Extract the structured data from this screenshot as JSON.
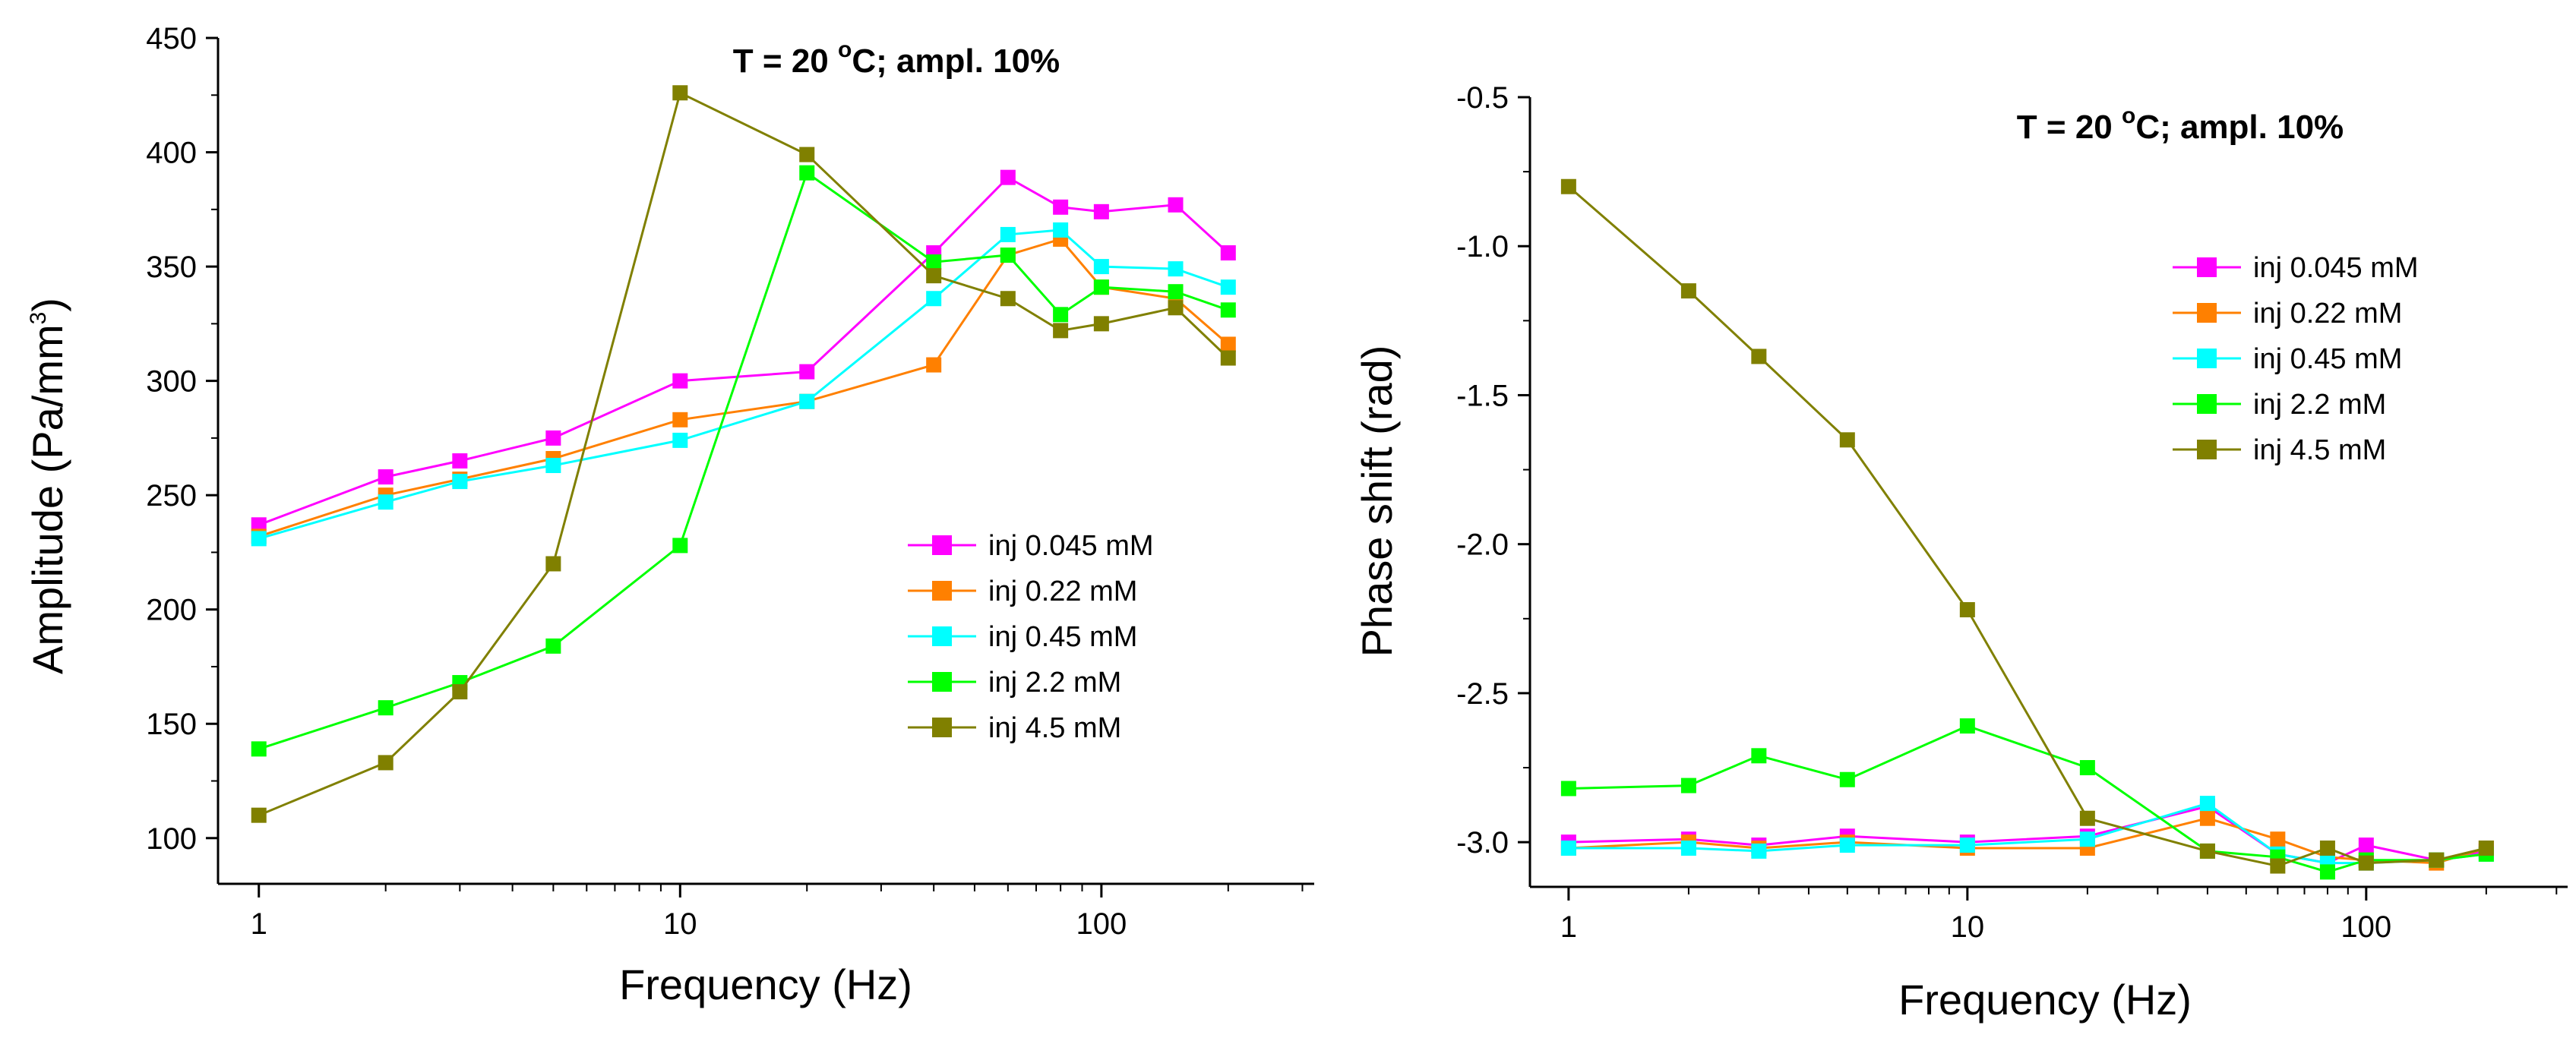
{
  "chart_data": [
    {
      "type": "line",
      "title": "T = 20 °C;  ampl. 10%",
      "title_parts": {
        "prefix": "T = 20 ",
        "degree": "o",
        "suffix": "C;  ampl. 10%"
      },
      "xlabel": "Frequency (Hz)",
      "ylabel": "Amplitude (Pa/mm³)",
      "ylabel_parts": {
        "base": "Amplitude (Pa/mm",
        "sup": "3",
        "close": ")"
      },
      "xscale": "log",
      "xlim": [
        0.8,
        320
      ],
      "ylim": [
        80,
        450
      ],
      "xticks": [
        1,
        10,
        100
      ],
      "xtick_labels": [
        "1",
        "10",
        "100"
      ],
      "yticks": [
        100,
        150,
        200,
        250,
        300,
        350,
        400,
        450
      ],
      "ytick_labels": [
        "100",
        "150",
        "200",
        "250",
        "300",
        "350",
        "400",
        "450"
      ],
      "legend_position": "lower-right",
      "series": [
        {
          "name": "inj 0.045 mM",
          "color": "#ff00ff",
          "x": [
            1,
            2,
            3,
            5,
            10,
            20,
            40,
            60,
            80,
            100,
            150,
            200
          ],
          "y": [
            237,
            258,
            265,
            275,
            300,
            304,
            356,
            389,
            376,
            374,
            377,
            356
          ]
        },
        {
          "name": "inj 0.22 mM",
          "color": "#ff8000",
          "x": [
            1,
            2,
            3,
            5,
            10,
            20,
            40,
            60,
            80,
            100,
            150,
            200
          ],
          "y": [
            232,
            250,
            257,
            266,
            283,
            291,
            307,
            355,
            362,
            341,
            336,
            316
          ]
        },
        {
          "name": "inj 0.45 mM",
          "color": "#00ffff",
          "x": [
            1,
            2,
            3,
            5,
            10,
            20,
            40,
            60,
            80,
            100,
            150,
            200
          ],
          "y": [
            231,
            247,
            256,
            263,
            274,
            291,
            336,
            364,
            366,
            350,
            349,
            341
          ]
        },
        {
          "name": "inj 2.2 mM",
          "color": "#00ff00",
          "x": [
            1,
            2,
            3,
            5,
            10,
            20,
            40,
            60,
            80,
            100,
            150,
            200
          ],
          "y": [
            139,
            157,
            168,
            184,
            228,
            391,
            352,
            355,
            329,
            341,
            339,
            331
          ]
        },
        {
          "name": "inj 4.5 mM",
          "color": "#808000",
          "x": [
            1,
            2,
            3,
            5,
            10,
            20,
            40,
            60,
            80,
            100,
            150,
            200
          ],
          "y": [
            110,
            133,
            164,
            220,
            426,
            399,
            346,
            336,
            322,
            325,
            332,
            310
          ]
        }
      ]
    },
    {
      "type": "line",
      "title": "T = 20 °C;  ampl. 10%",
      "title_parts": {
        "prefix": "T = 20 ",
        "degree": "o",
        "suffix": "C;  ampl. 10%"
      },
      "xlabel": "Frequency (Hz)",
      "ylabel": "Phase shift (rad)",
      "xscale": "log",
      "xlim": [
        0.8,
        320
      ],
      "ylim": [
        -3.15,
        -0.5
      ],
      "xticks": [
        1,
        10,
        100
      ],
      "xtick_labels": [
        "1",
        "10",
        "100"
      ],
      "yticks": [
        -0.5,
        -1.0,
        -1.5,
        -2.0,
        -2.5,
        -3.0
      ],
      "ytick_labels": [
        "-0.5",
        "-1.0",
        "-1.5",
        "-2.0",
        "-2.5",
        "-3.0"
      ],
      "legend_position": "top-right",
      "series": [
        {
          "name": "inj 0.045 mM",
          "color": "#ff00ff",
          "x": [
            1,
            2,
            3,
            5,
            10,
            20,
            40,
            60,
            80,
            100,
            150,
            200
          ],
          "y": [
            -3.0,
            -2.99,
            -3.01,
            -2.98,
            -3.0,
            -2.98,
            -2.88,
            -3.04,
            -3.07,
            -3.01,
            -3.06,
            -3.03
          ]
        },
        {
          "name": "inj 0.22 mM",
          "color": "#ff8000",
          "x": [
            1,
            2,
            3,
            5,
            10,
            20,
            40,
            60,
            80,
            100,
            150,
            200
          ],
          "y": [
            -3.02,
            -3.0,
            -3.02,
            -3.0,
            -3.02,
            -3.02,
            -2.92,
            -2.99,
            -3.05,
            -3.06,
            -3.07,
            -3.02
          ]
        },
        {
          "name": "inj 0.45 mM",
          "color": "#00ffff",
          "x": [
            1,
            2,
            3,
            5,
            10,
            20,
            40,
            60,
            80,
            100,
            150,
            200
          ],
          "y": [
            -3.02,
            -3.02,
            -3.03,
            -3.01,
            -3.01,
            -2.99,
            -2.87,
            -3.04,
            -3.07,
            -3.07,
            -3.06,
            -3.04
          ]
        },
        {
          "name": "inj 2.2 mM",
          "color": "#00ff00",
          "x": [
            1,
            2,
            3,
            5,
            10,
            20,
            40,
            60,
            80,
            100,
            150,
            200
          ],
          "y": [
            -2.82,
            -2.81,
            -2.71,
            -2.79,
            -2.61,
            -2.75,
            -3.03,
            -3.05,
            -3.1,
            -3.06,
            -3.06,
            -3.04
          ]
        },
        {
          "name": "inj 4.5 mM",
          "color": "#808000",
          "x": [
            1,
            2,
            3,
            5,
            10,
            20,
            40,
            60,
            80,
            100,
            150,
            200
          ],
          "y": [
            -0.8,
            -1.15,
            -1.37,
            -1.65,
            -2.22,
            -2.92,
            -3.03,
            -3.08,
            -3.02,
            -3.07,
            -3.06,
            -3.02
          ]
        }
      ]
    }
  ]
}
